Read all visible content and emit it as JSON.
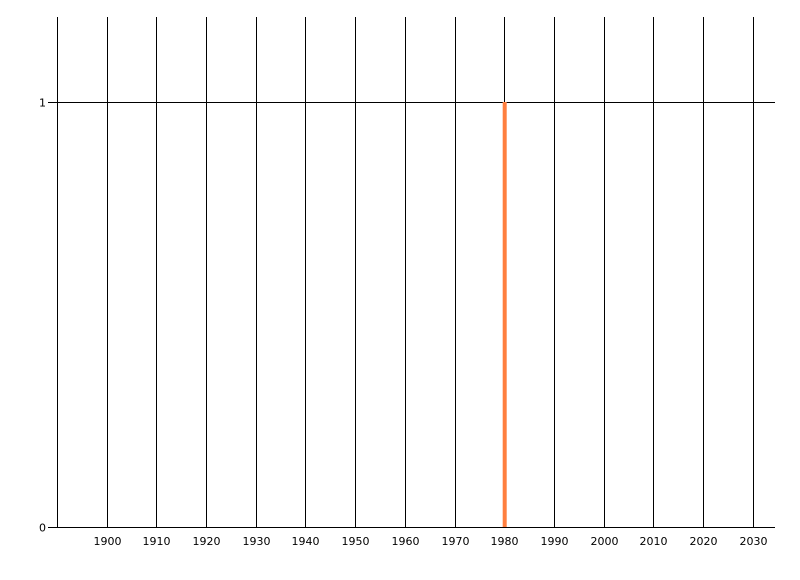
{
  "chart_data": {
    "type": "bar",
    "title": "",
    "xlabel": "",
    "ylabel": "",
    "x": [
      1980
    ],
    "values": [
      1
    ],
    "bar_color": "#FF7F3F",
    "xlim": [
      1890,
      2034.5
    ],
    "ylim": [
      0,
      1.2
    ],
    "x_ticks": [
      1900,
      1910,
      1920,
      1930,
      1940,
      1950,
      1960,
      1970,
      1980,
      1990,
      2000,
      2010,
      2020,
      2030
    ],
    "y_ticks": [
      0,
      1
    ],
    "grid": true,
    "legend": "none"
  }
}
